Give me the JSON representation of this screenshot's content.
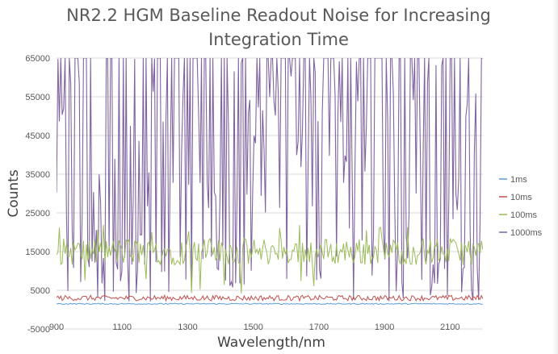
{
  "chart_data": {
    "type": "line",
    "title": "NR2.2 HGM Baseline Readout Noise for Increasing Integration Time",
    "xlabel": "Wavelength/nm",
    "ylabel": "Counts",
    "xlim": [
      900,
      2200
    ],
    "ylim": [
      -5000,
      65000
    ],
    "x_ticks": [
      "900",
      "1100",
      "1300",
      "1500",
      "1700",
      "1900",
      "2100"
    ],
    "y_ticks": [
      "65000",
      "55000",
      "45000",
      "35000",
      "25000",
      "15000",
      "5000",
      "-5000"
    ],
    "grid": "horizontal",
    "legend_position": "right",
    "series": [
      {
        "name": "1ms",
        "color": "#5b9bd5",
        "mean": 1500,
        "noise": 150
      },
      {
        "name": "10ms",
        "color": "#c0504d",
        "mean": 3000,
        "noise": 700
      },
      {
        "name": "100ms",
        "color": "#9bbb59",
        "mean": 15000,
        "noise": 3500
      },
      {
        "name": "1000ms",
        "color": "#8064a2",
        "mean": 42000,
        "noise": "saturating, fluctuates between ~2000 and 65000"
      }
    ]
  }
}
